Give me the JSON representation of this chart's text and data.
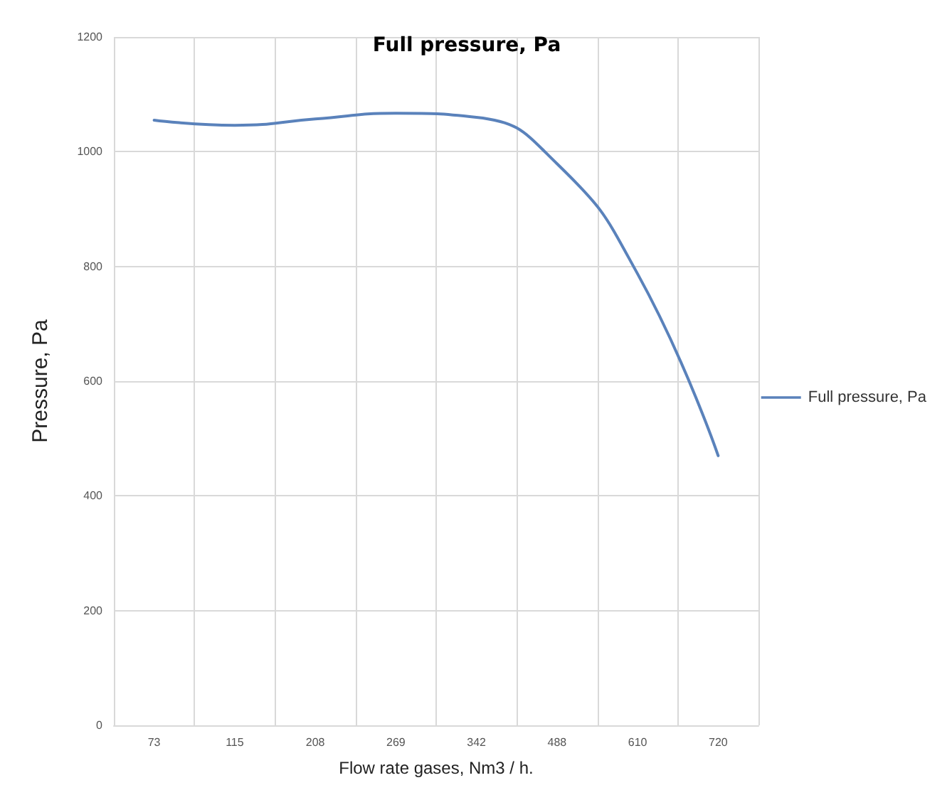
{
  "chart_data": {
    "type": "line",
    "title": "Full pressure, Pa",
    "xlabel": "Flow rate gases, Nm3 / h.",
    "ylabel": "Pressure, Pa",
    "categories": [
      "73",
      "115",
      "208",
      "269",
      "342",
      "488",
      "610",
      "720"
    ],
    "series": [
      {
        "name": "Full pressure, Pa",
        "color": "#5a82bb",
        "values": [
          1055,
          1046,
          1057,
          1067,
          1060,
          979,
          787,
          470
        ]
      }
    ],
    "ylim": [
      0,
      1200
    ],
    "yticks": [
      0,
      200,
      400,
      600,
      800,
      1000,
      1200
    ],
    "grid": true,
    "legend": "right",
    "marker": "none",
    "line_style": "solid"
  }
}
